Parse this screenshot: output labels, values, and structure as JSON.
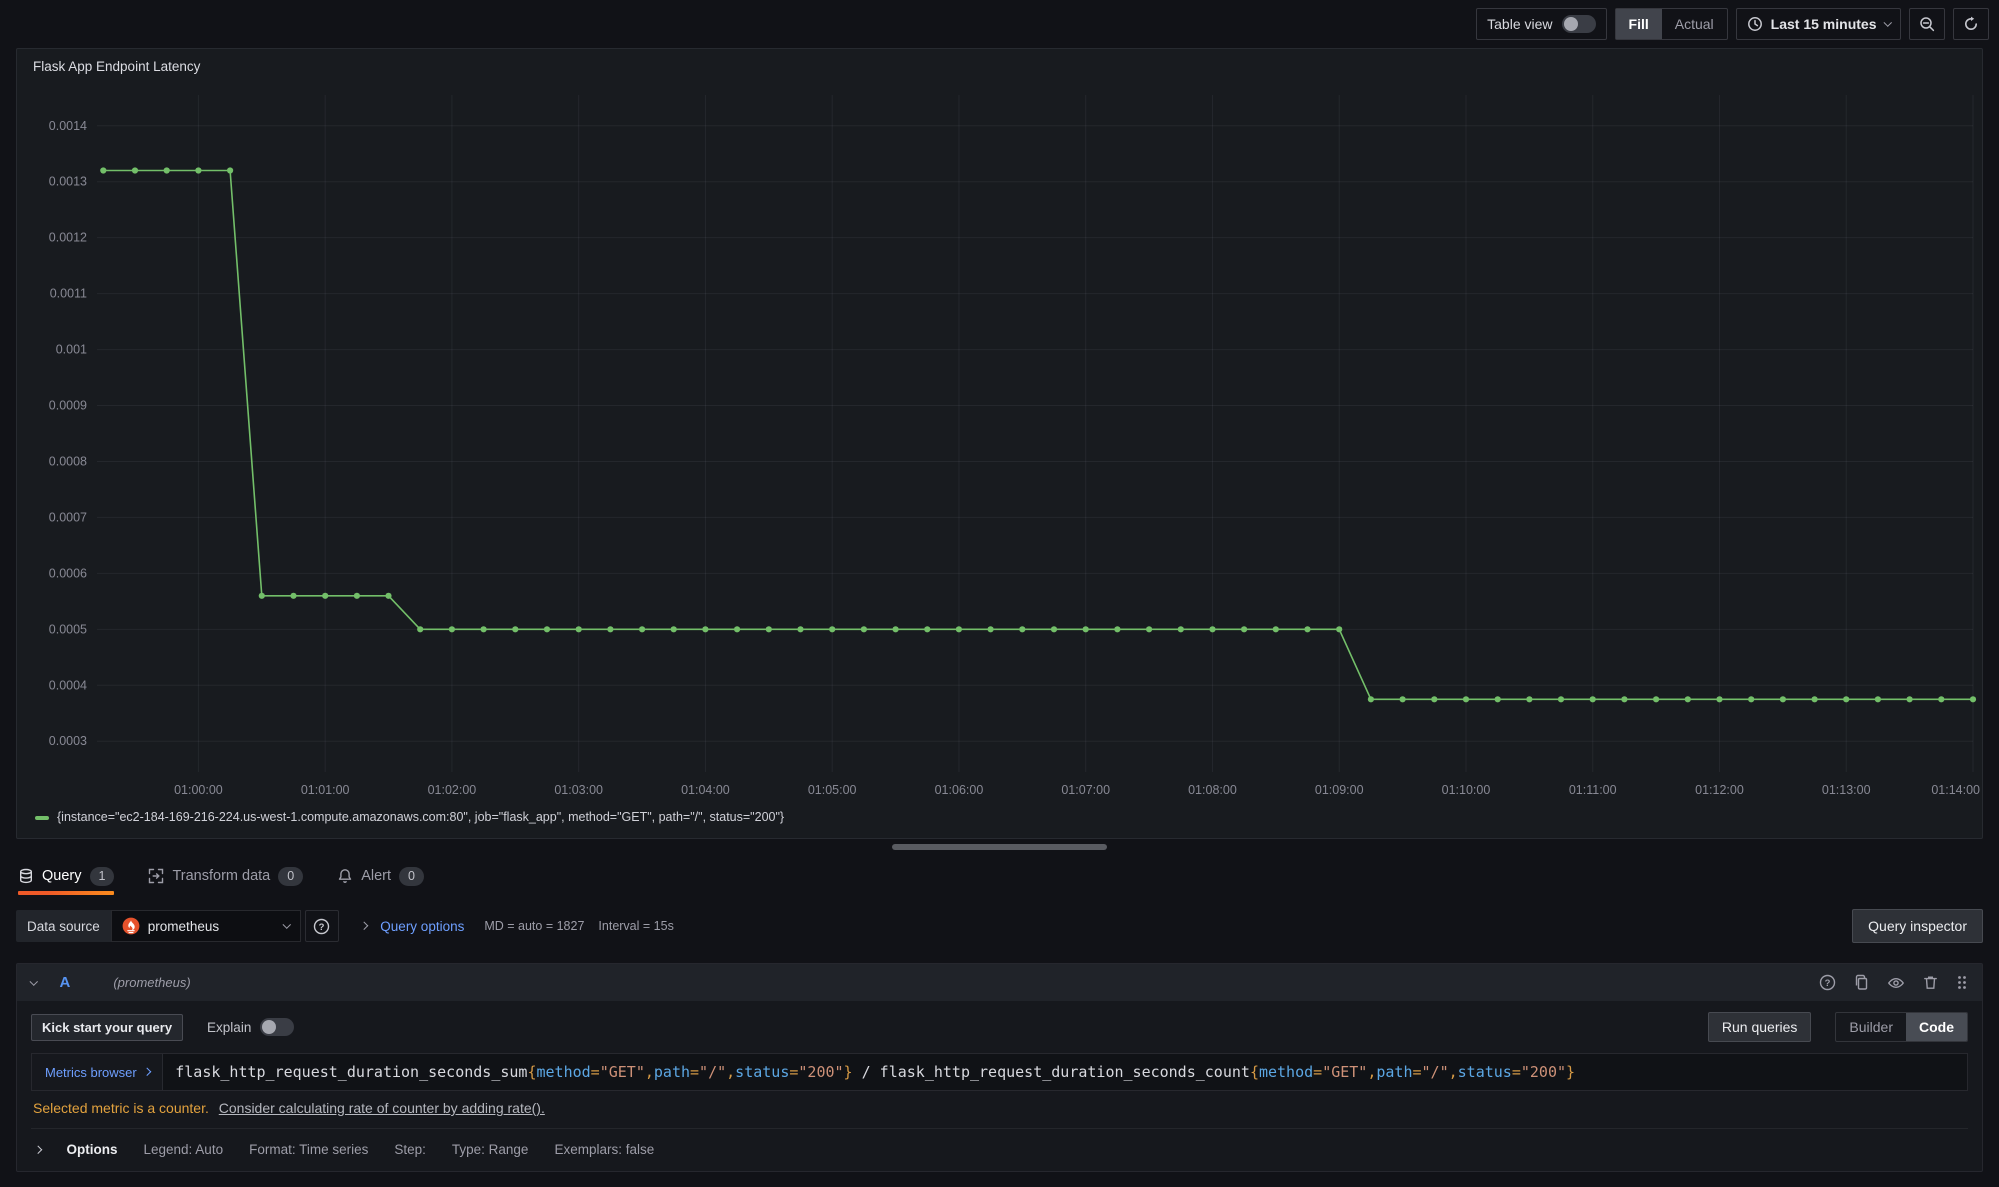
{
  "colors": {
    "series_green": "#73bf69",
    "accent_orange_gradient": [
      "#f05a28",
      "#fb8b1e"
    ],
    "link_blue": "#6e9fff",
    "query_ref_blue": "#5794f2",
    "warning_orange": "#e2a23e",
    "prometheus_orange": "#e6522c",
    "panel_bg": "#181b1f",
    "page_bg": "#111217"
  },
  "header": {
    "table_view_label": "Table view",
    "fill_label": "Fill",
    "actual_label": "Actual",
    "time_range_label": "Last 15 minutes"
  },
  "panel": {
    "title": "Flask App Endpoint Latency",
    "legend": "{instance=\"ec2-184-169-216-224.us-west-1.compute.amazonaws.com:80\", job=\"flask_app\", method=\"GET\", path=\"/\", status=\"200\"}"
  },
  "chart_data": {
    "type": "line",
    "title": "Flask App Endpoint Latency",
    "series_name": "{instance=\"ec2-184-169-216-224.us-west-1.compute.amazonaws.com:80\", job=\"flask_app\", method=\"GET\", path=\"/\", status=\"200\"}",
    "series_color": "#73bf69",
    "grid": true,
    "legend_position": "bottom-left",
    "x_min": -48,
    "x_max": 840,
    "y_min": 0.000245,
    "y_max": 0.001455,
    "t_start": -45,
    "t_step": 15,
    "values": [
      0.00132,
      0.00132,
      0.00132,
      0.00132,
      0.00132,
      0.00056,
      0.00056,
      0.00056,
      0.00056,
      0.00056,
      0.0005,
      0.0005,
      0.0005,
      0.0005,
      0.0005,
      0.0005,
      0.0005,
      0.0005,
      0.0005,
      0.0005,
      0.0005,
      0.0005,
      0.0005,
      0.0005,
      0.0005,
      0.0005,
      0.0005,
      0.0005,
      0.0005,
      0.0005,
      0.0005,
      0.0005,
      0.0005,
      0.0005,
      0.0005,
      0.0005,
      0.0005,
      0.0005,
      0.0005,
      0.0005,
      0.000375,
      0.000375,
      0.000375,
      0.000375,
      0.000375,
      0.000375,
      0.000375,
      0.000375,
      0.000375,
      0.000375,
      0.000375,
      0.000375,
      0.000375,
      0.000375,
      0.000375,
      0.000375,
      0.000375,
      0.000375,
      0.000375,
      0.000375
    ],
    "x_ticks": [
      {
        "t": 0,
        "label": "01:00:00"
      },
      {
        "t": 60,
        "label": "01:01:00"
      },
      {
        "t": 120,
        "label": "01:02:00"
      },
      {
        "t": 180,
        "label": "01:03:00"
      },
      {
        "t": 240,
        "label": "01:04:00"
      },
      {
        "t": 300,
        "label": "01:05:00"
      },
      {
        "t": 360,
        "label": "01:06:00"
      },
      {
        "t": 420,
        "label": "01:07:00"
      },
      {
        "t": 480,
        "label": "01:08:00"
      },
      {
        "t": 540,
        "label": "01:09:00"
      },
      {
        "t": 600,
        "label": "01:10:00"
      },
      {
        "t": 660,
        "label": "01:11:00"
      },
      {
        "t": 720,
        "label": "01:12:00"
      },
      {
        "t": 780,
        "label": "01:13:00"
      },
      {
        "t": 840,
        "label": "01:14:00"
      }
    ],
    "y_ticks": [
      {
        "v": 0.0003,
        "label": "0.0003"
      },
      {
        "v": 0.0004,
        "label": "0.0004"
      },
      {
        "v": 0.0005,
        "label": "0.0005"
      },
      {
        "v": 0.0006,
        "label": "0.0006"
      },
      {
        "v": 0.0007,
        "label": "0.0007"
      },
      {
        "v": 0.0008,
        "label": "0.0008"
      },
      {
        "v": 0.0009,
        "label": "0.0009"
      },
      {
        "v": 0.001,
        "label": "0.001"
      },
      {
        "v": 0.0011,
        "label": "0.0011"
      },
      {
        "v": 0.0012,
        "label": "0.0012"
      },
      {
        "v": 0.0013,
        "label": "0.0013"
      },
      {
        "v": 0.0014,
        "label": "0.0014"
      }
    ]
  },
  "tabs": [
    {
      "label": "Query",
      "count": "1",
      "icon": "database-icon",
      "active": true
    },
    {
      "label": "Transform data",
      "count": "0",
      "icon": "transform-icon",
      "active": false
    },
    {
      "label": "Alert",
      "count": "0",
      "icon": "bell-icon",
      "active": false
    }
  ],
  "datasource_row": {
    "label": "Data source",
    "selected": "prometheus",
    "query_options_label": "Query options",
    "md_text": "MD = auto = 1827",
    "interval_text": "Interval = 15s",
    "inspector_button": "Query inspector"
  },
  "query": {
    "ref_id": "A",
    "datasource_hint": "(prometheus)",
    "kick_start_label": "Kick start your query",
    "explain_label": "Explain",
    "run_queries_label": "Run queries",
    "builder_label": "Builder",
    "code_label": "Code",
    "metrics_browser_label": "Metrics browser",
    "expr": "flask_http_request_duration_seconds_sum{method=\"GET\",path=\"/\",status=\"200\"} / flask_http_request_duration_seconds_count{method=\"GET\",path=\"/\",status=\"200\"}",
    "expr_tokens": [
      {
        "t": "flask_http_request_duration_seconds_sum",
        "c": "metric"
      },
      {
        "t": "{",
        "c": "punct"
      },
      {
        "t": "method",
        "c": "label"
      },
      {
        "t": "=",
        "c": "op"
      },
      {
        "t": "\"GET\"",
        "c": "str"
      },
      {
        "t": ",",
        "c": "punct"
      },
      {
        "t": "path",
        "c": "label"
      },
      {
        "t": "=",
        "c": "op"
      },
      {
        "t": "\"/\"",
        "c": "str"
      },
      {
        "t": ",",
        "c": "punct"
      },
      {
        "t": "status",
        "c": "label"
      },
      {
        "t": "=",
        "c": "op"
      },
      {
        "t": "\"200\"",
        "c": "str"
      },
      {
        "t": "}",
        "c": "punct"
      },
      {
        "t": " / ",
        "c": "plain"
      },
      {
        "t": "flask_http_request_duration_seconds_count",
        "c": "metric"
      },
      {
        "t": "{",
        "c": "punct"
      },
      {
        "t": "method",
        "c": "label"
      },
      {
        "t": "=",
        "c": "op"
      },
      {
        "t": "\"GET\"",
        "c": "str"
      },
      {
        "t": ",",
        "c": "punct"
      },
      {
        "t": "path",
        "c": "label"
      },
      {
        "t": "=",
        "c": "op"
      },
      {
        "t": "\"/\"",
        "c": "str"
      },
      {
        "t": ",",
        "c": "punct"
      },
      {
        "t": "status",
        "c": "label"
      },
      {
        "t": "=",
        "c": "op"
      },
      {
        "t": "\"200\"",
        "c": "str"
      },
      {
        "t": "}",
        "c": "punct"
      }
    ],
    "warning_text": "Selected metric is a counter.",
    "warning_link": "Consider calculating rate of counter by adding rate().",
    "options": {
      "title": "Options",
      "items": [
        "Legend: Auto",
        "Format: Time series",
        "Step:",
        "Type: Range",
        "Exemplars: false"
      ]
    }
  },
  "icons": {
    "clock-icon": "clock face",
    "chevron-down-icon": "v",
    "zoom-out-icon": "magnifier with minus",
    "refresh-icon": "circular arrow",
    "database-icon": "db cylinder",
    "transform-icon": "corner brackets",
    "bell-icon": "bell",
    "help-circle-icon": "? in circle",
    "prometheus-logo-icon": "orange torch",
    "copy-icon": "duplicate sheets",
    "eye-icon": "eye",
    "trash-icon": "trash can",
    "grip-icon": "drag dots"
  }
}
